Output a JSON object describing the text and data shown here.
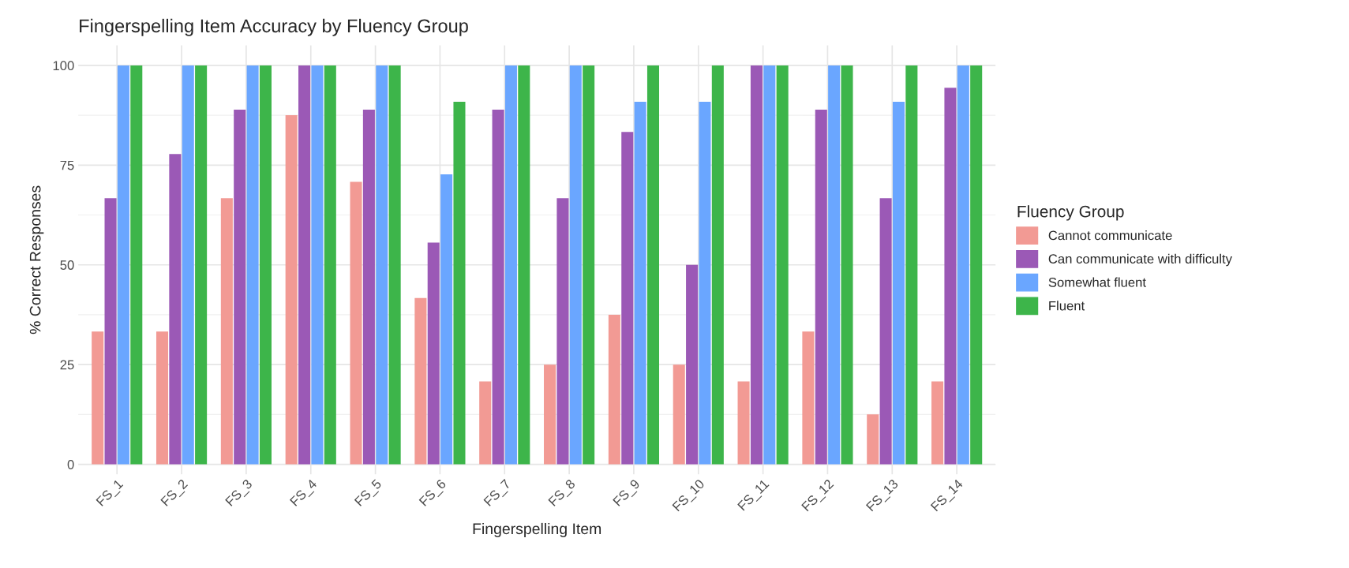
{
  "chart_data": {
    "type": "bar",
    "title": "Fingerspelling Item Accuracy by Fluency Group",
    "xlabel": "Fingerspelling Item",
    "ylabel": "% Correct Responses",
    "legend_title": "Fluency Group",
    "categories": [
      "FS_1",
      "FS_2",
      "FS_3",
      "FS_4",
      "FS_5",
      "FS_6",
      "FS_7",
      "FS_8",
      "FS_9",
      "FS_10",
      "FS_11",
      "FS_12",
      "FS_13",
      "FS_14"
    ],
    "series": [
      {
        "name": "Cannot communicate",
        "color": "#f29a94",
        "values": [
          33.3,
          33.3,
          66.7,
          87.5,
          70.8,
          41.7,
          20.8,
          25,
          37.5,
          25,
          20.8,
          33.3,
          12.5,
          20.8
        ]
      },
      {
        "name": "Can communicate with difficulty",
        "color": "#9b59b6",
        "values": [
          66.7,
          77.8,
          88.9,
          100,
          88.9,
          55.6,
          88.9,
          66.7,
          83.3,
          50,
          100,
          88.9,
          66.7,
          94.4
        ]
      },
      {
        "name": "Somewhat fluent",
        "color": "#6aa6ff",
        "values": [
          100,
          100,
          100,
          100,
          100,
          72.7,
          100,
          100,
          90.9,
          90.9,
          100,
          100,
          90.9,
          100
        ]
      },
      {
        "name": "Fluent",
        "color": "#3db54a",
        "values": [
          100,
          100,
          100,
          100,
          100,
          90.9,
          100,
          100,
          100,
          100,
          100,
          100,
          100,
          100
        ]
      }
    ],
    "ylim": [
      -2.5,
      105
    ],
    "yticks": [
      0,
      25,
      50,
      75,
      100
    ],
    "grid": true,
    "legend": "right"
  }
}
